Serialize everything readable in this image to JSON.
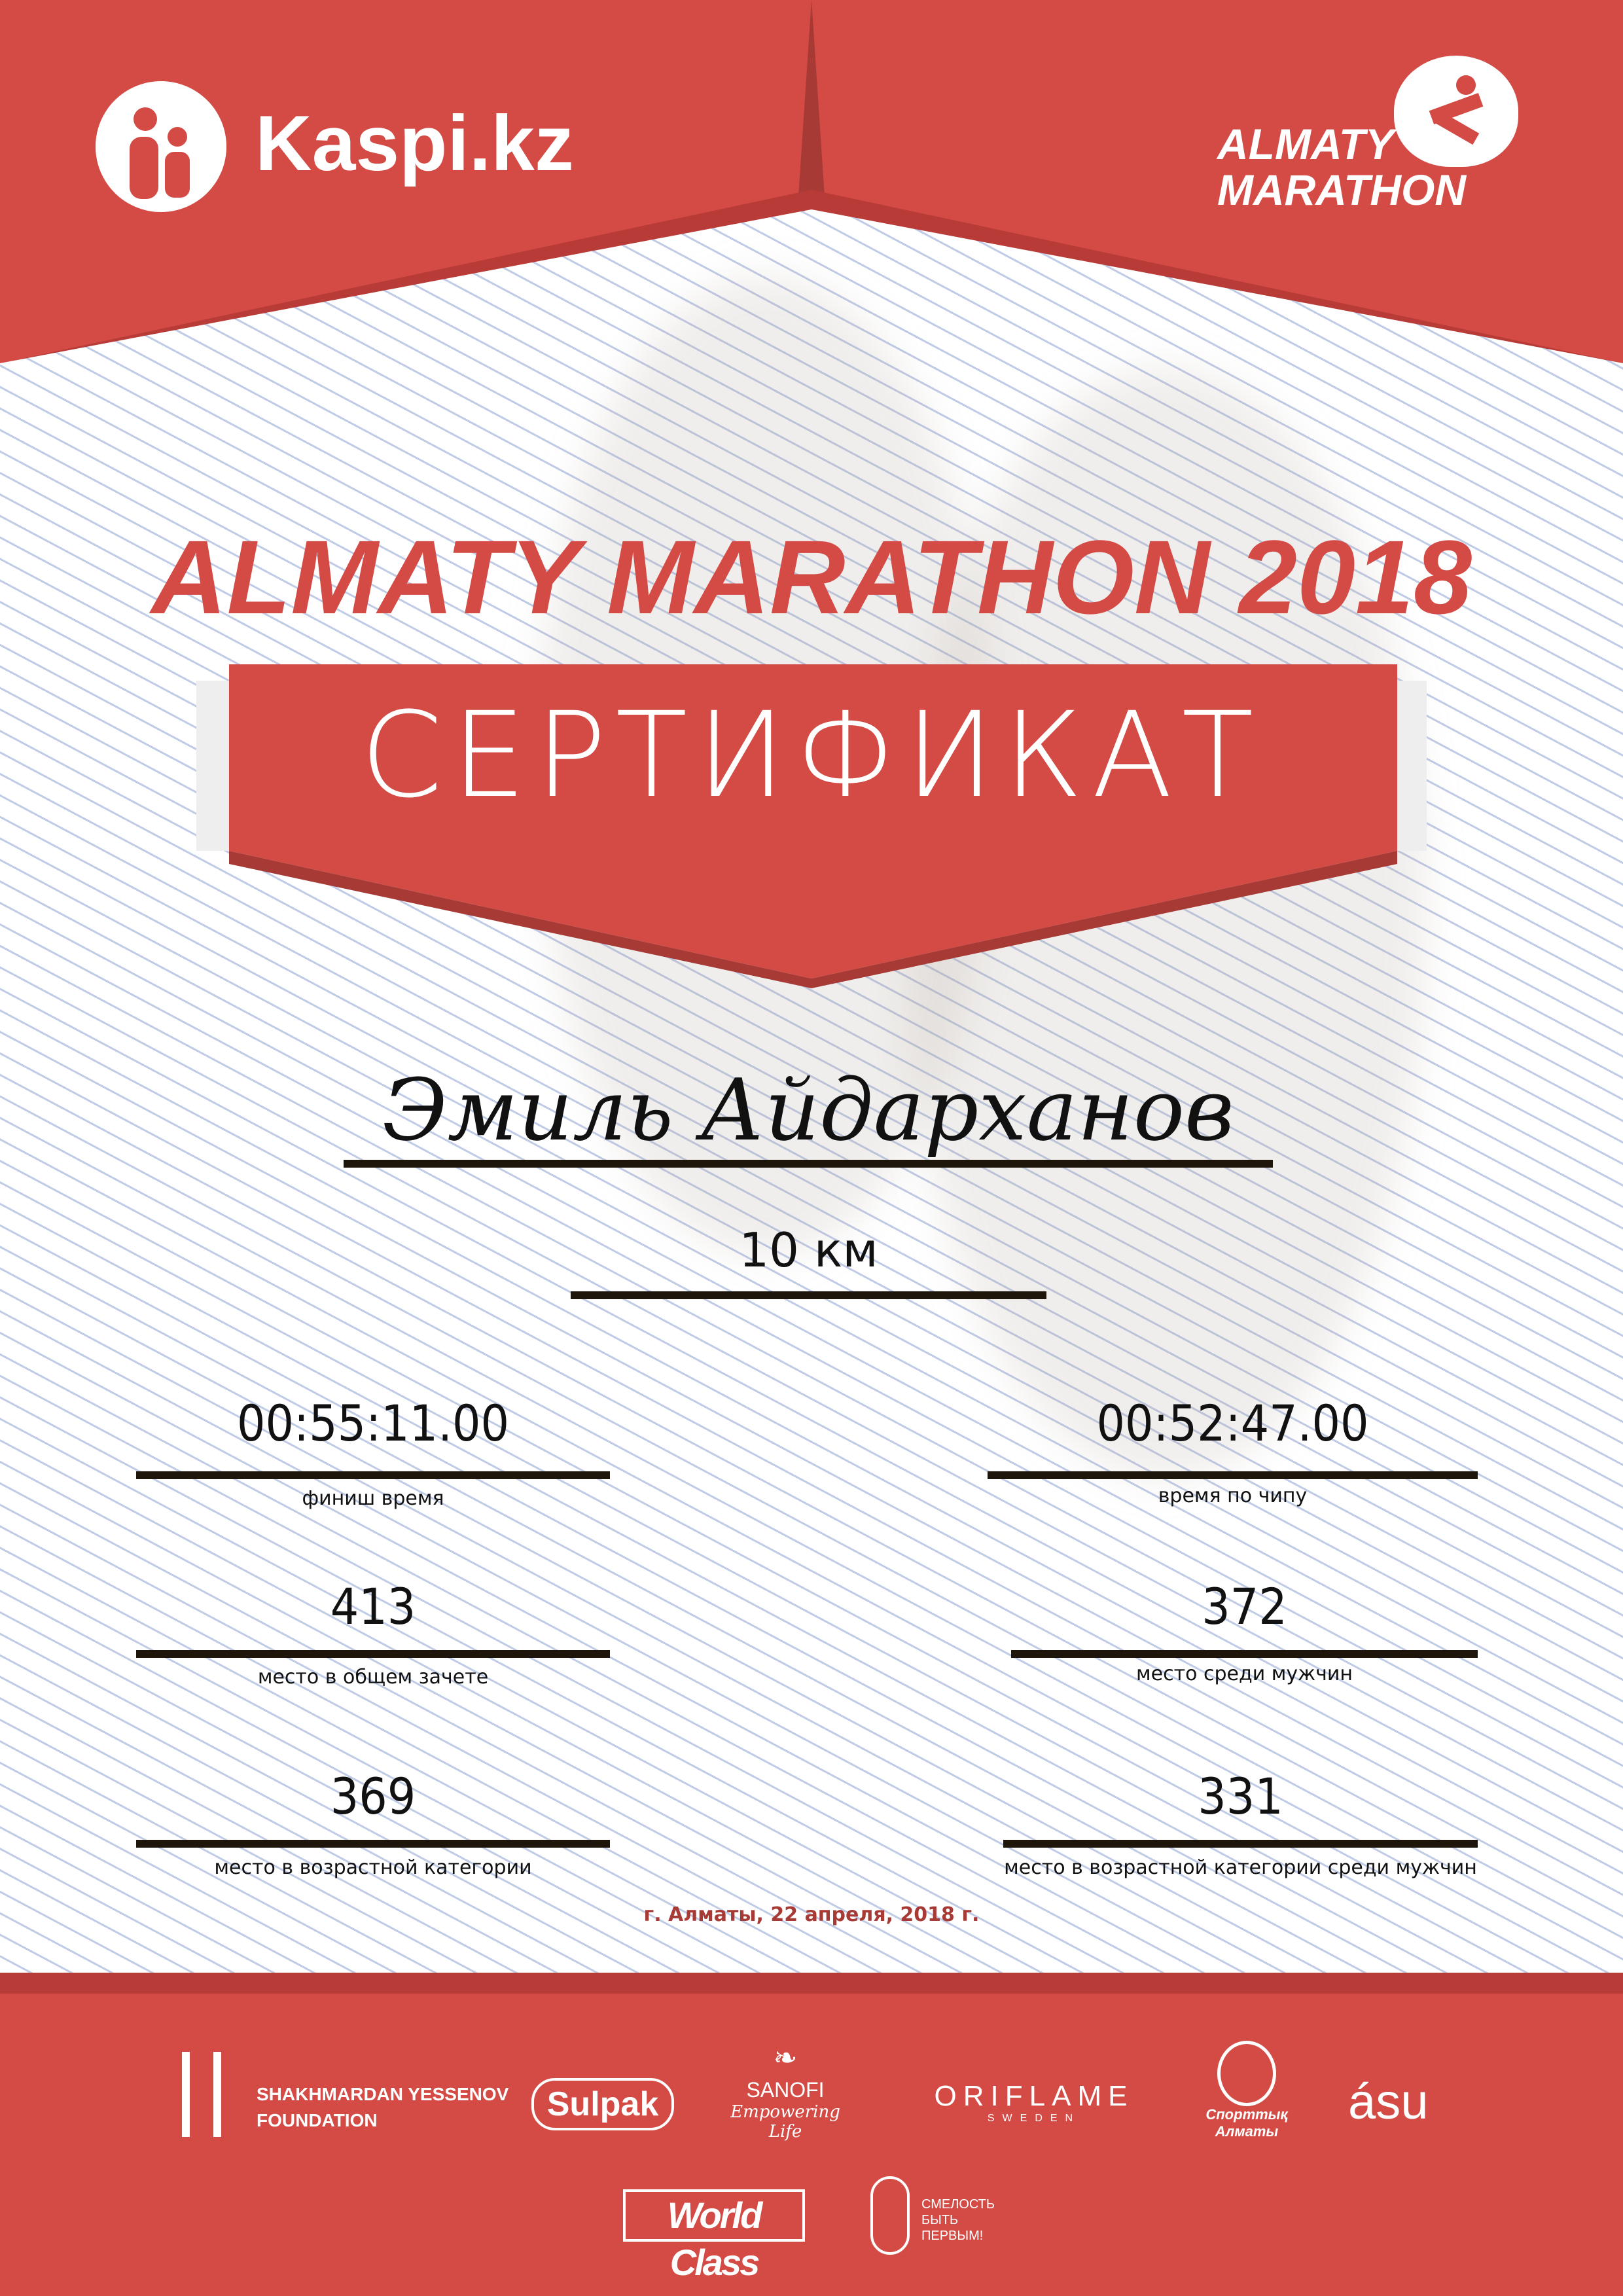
{
  "header": {
    "sponsor_logo": "Kaspi.kz",
    "event_logo": [
      "ALMATY",
      "MARATHON"
    ]
  },
  "title": "ALMATY MARATHON 2018",
  "ribbon": "СЕРТИФИКАТ",
  "participant": {
    "name": "Эмиль Айдарханов",
    "distance": "10 км"
  },
  "results": [
    {
      "value": "00:55:11.00",
      "label": "финиш время"
    },
    {
      "value": "00:52:47.00",
      "label": "время по чипу"
    },
    {
      "value": "413",
      "label": "место в общем зачете"
    },
    {
      "value": "372",
      "label": "место среди мужчин"
    },
    {
      "value": "369",
      "label": "место в возрастной категории"
    },
    {
      "value": "331",
      "label": "место в возрастной категории среди мужчин"
    }
  ],
  "date": "г. Алматы, 22 апреля, 2018 г.",
  "partners": {
    "yessenov": [
      "SHAKHMARDAN YESSENOV",
      "FOUNDATION"
    ],
    "sulpak": "Sulpak",
    "sanofi": [
      "SANOFI",
      "Empowering Life"
    ],
    "oriflame": [
      "ORIFLAME",
      "SWEDEN"
    ],
    "sport_almaty": [
      "Спорттық",
      "Алматы"
    ],
    "asu": "ásu",
    "worldclass": "World Class",
    "fund": [
      "СМЕЛОСТЬ",
      "БЫТЬ",
      "ПЕРВЫМ!"
    ]
  },
  "colors": {
    "brand_red": "#d44b45",
    "dark_red": "#a83a36",
    "line": "#1f160b"
  }
}
